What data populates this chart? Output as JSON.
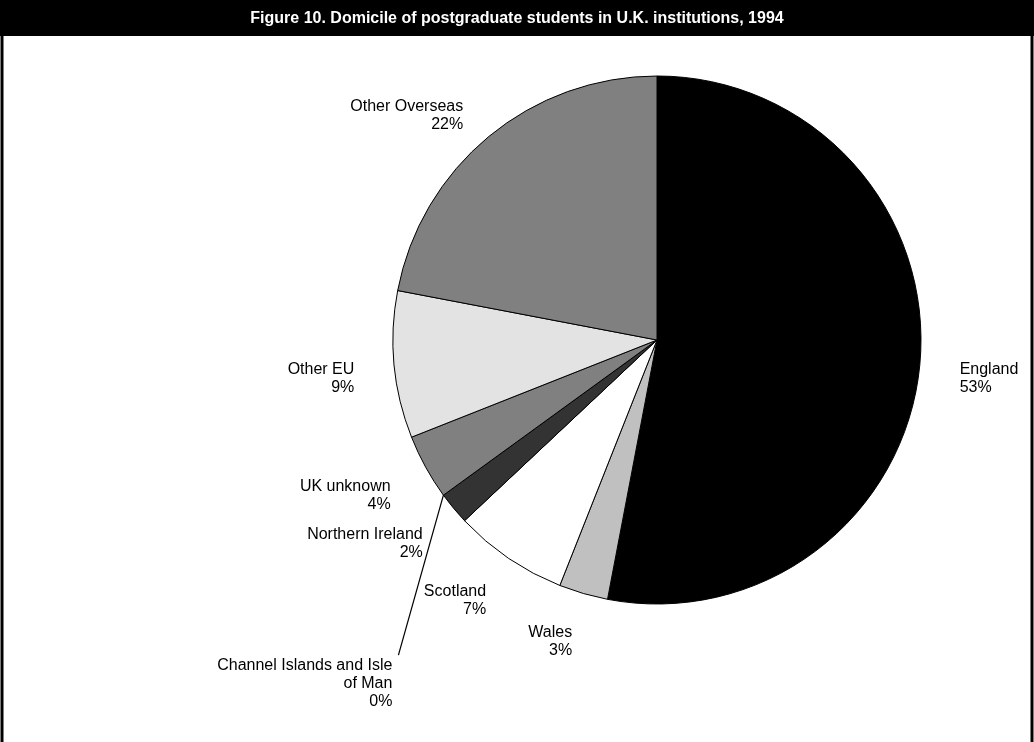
{
  "chart_data": {
    "type": "pie",
    "title": "Figure 10. Domicile of postgraduate students in U.K. institutions, 1994",
    "categories": [
      "England",
      "Wales",
      "Scotland",
      "Northern Ireland",
      "Channel Islands and Isle of Man",
      "UK unknown",
      "Other EU",
      "Other Overseas"
    ],
    "values": [
      53,
      3,
      7,
      2,
      0,
      4,
      9,
      22
    ],
    "value_labels": [
      "53%",
      "3%",
      "7%",
      "2%",
      "0%",
      "4%",
      "9%",
      "22%"
    ],
    "colors": [
      "#000000",
      "#c0c0c0",
      "#ffffff",
      "#333333",
      "#ffffff",
      "#808080",
      "#e3e3e3",
      "#808080"
    ]
  }
}
